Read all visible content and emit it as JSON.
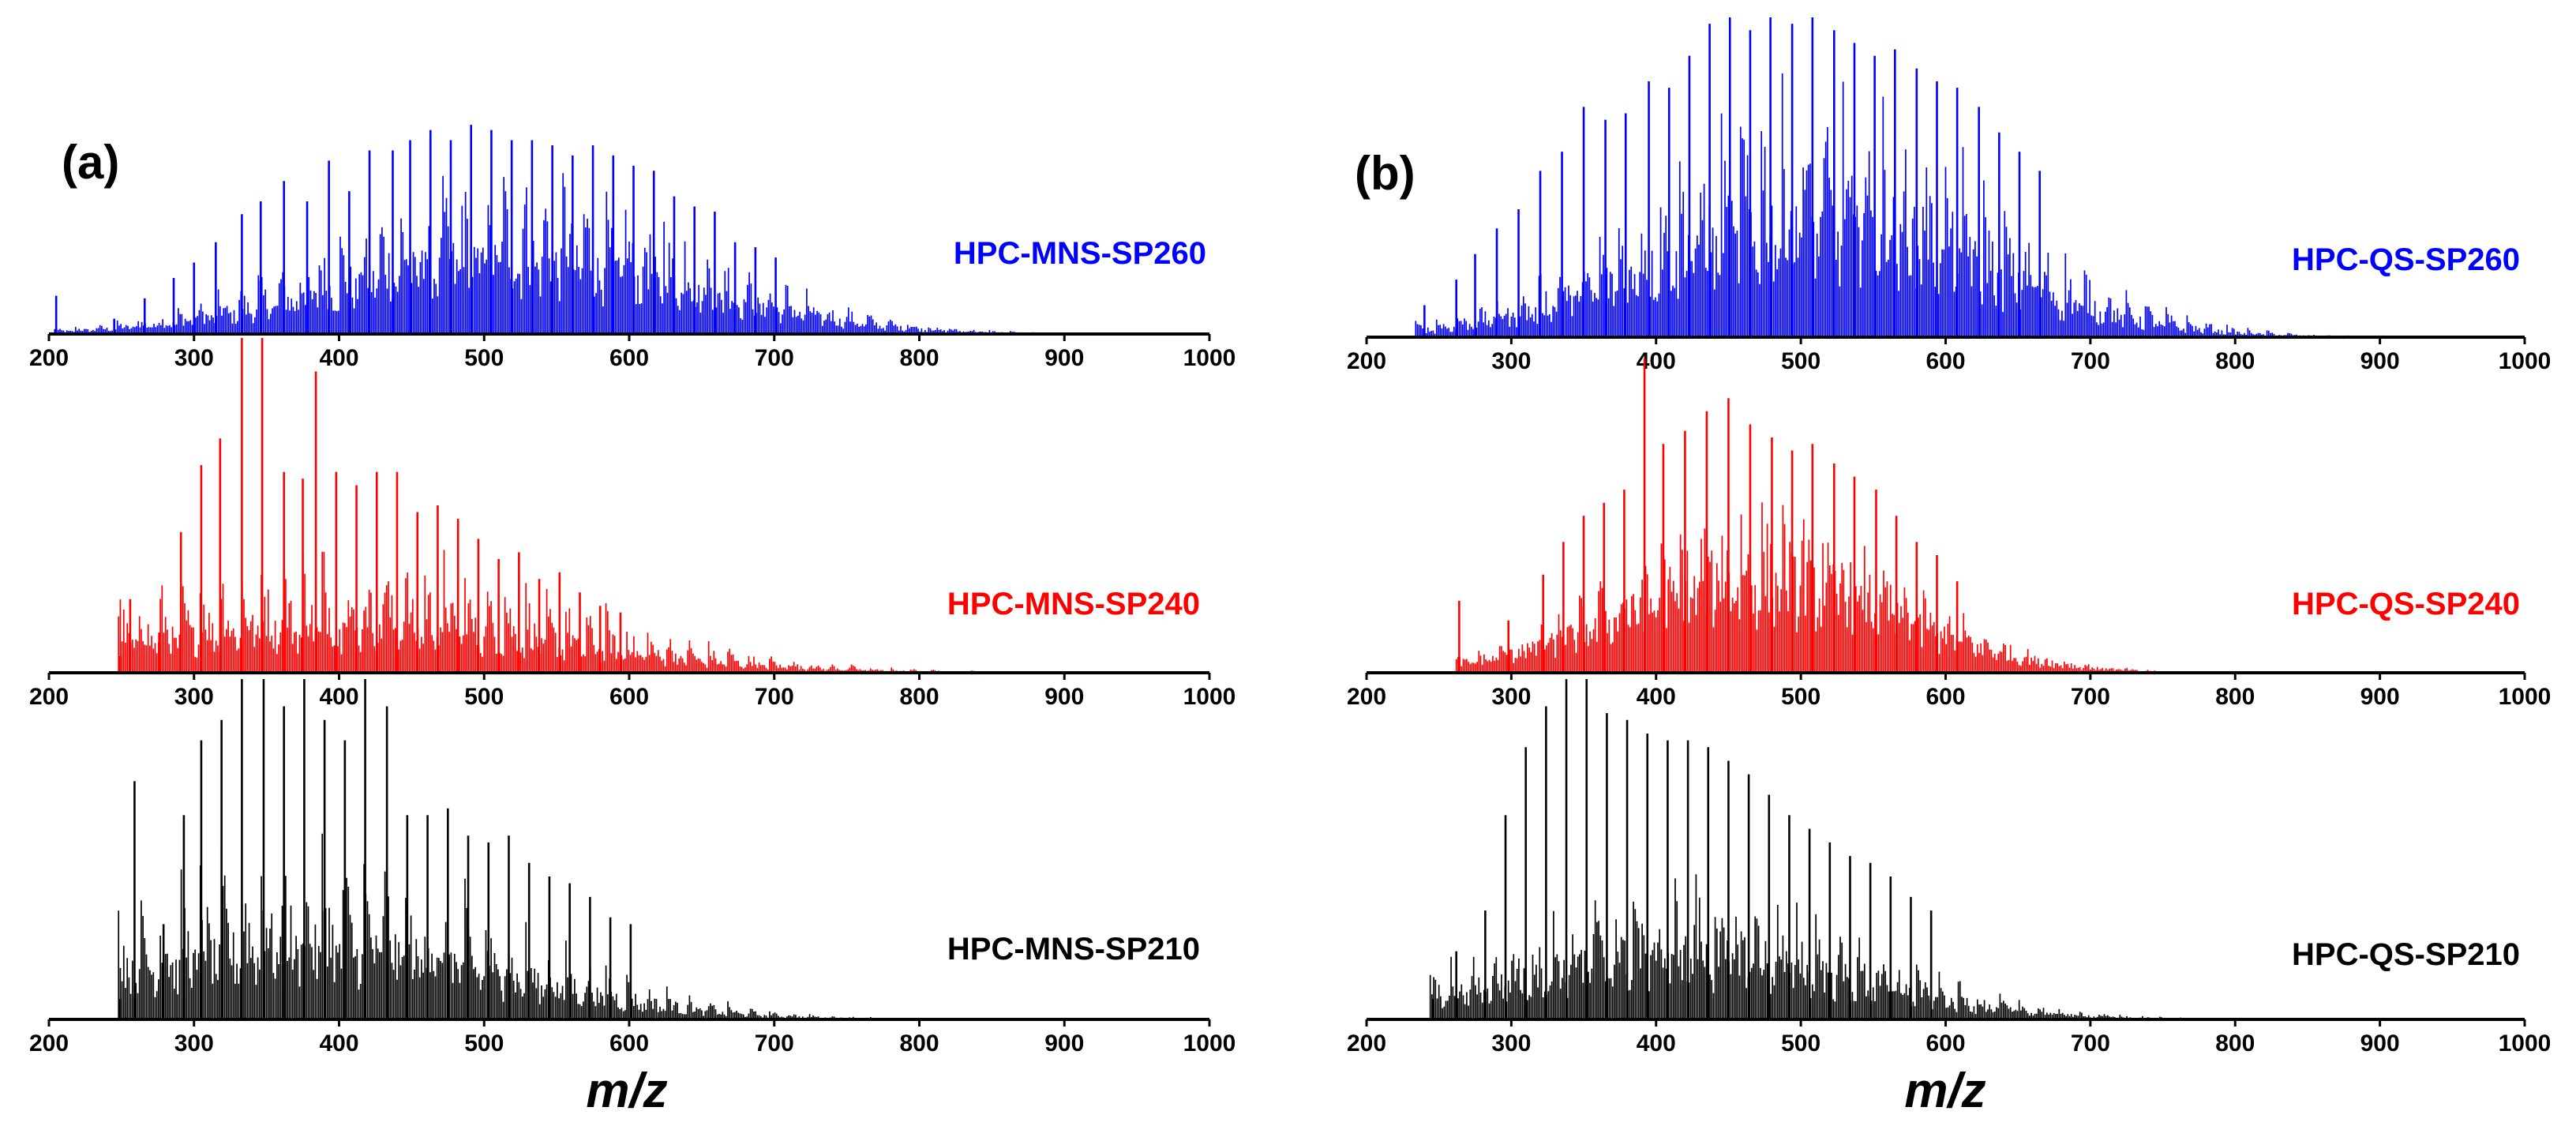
{
  "figure": {
    "colors": {
      "blue": "#0000ff",
      "red": "#ff0000",
      "black": "#000000"
    }
  },
  "chart_data": [
    {
      "type": "bar",
      "panel": "(a)",
      "xlabel": "m/z",
      "ylabel": "",
      "xlim": [
        200,
        1000
      ],
      "ylim": [
        0,
        100
      ],
      "xticks": [
        200,
        300,
        400,
        500,
        600,
        700,
        800,
        900,
        1000
      ],
      "xtick_labels": [
        "200",
        "300",
        "400",
        "500",
        "600",
        "700",
        "800",
        "900",
        "1000"
      ],
      "series": [
        {
          "name": "HPC-MNS-SP260",
          "color": "#0000ff",
          "start": 204,
          "end": 990,
          "spacing": 14.0,
          "center": 520,
          "sigma": 120,
          "envelope_peak": 78,
          "floor_ratio": 0.45,
          "peaks": [
            [
              205,
              15
            ],
            [
              245,
              6
            ],
            [
              266,
              14
            ],
            [
              286,
              22
            ],
            [
              300,
              28
            ],
            [
              315,
              36
            ],
            [
              333,
              47
            ],
            [
              346,
              52
            ],
            [
              362,
              60
            ],
            [
              378,
              52
            ],
            [
              393,
              68
            ],
            [
              407,
              56
            ],
            [
              421,
              72
            ],
            [
              437,
              72
            ],
            [
              449,
              76
            ],
            [
              463,
              80
            ],
            [
              477,
              76
            ],
            [
              491,
              82
            ],
            [
              505,
              80
            ],
            [
              519,
              76
            ],
            [
              533,
              76
            ],
            [
              547,
              74
            ],
            [
              561,
              70
            ],
            [
              575,
              74
            ],
            [
              589,
              70
            ],
            [
              603,
              66
            ],
            [
              617,
              64
            ],
            [
              631,
              54
            ],
            [
              645,
              50
            ],
            [
              659,
              48
            ],
            [
              673,
              36
            ],
            [
              687,
              34
            ],
            [
              701,
              30
            ]
          ]
        },
        {
          "name": "HPC-MNS-SP240",
          "color": "#ff0000",
          "start": 248,
          "end": 960,
          "spacing": 14.0,
          "center": 400,
          "sigma": 150,
          "envelope_peak": 45,
          "floor_ratio": 0.35,
          "peaks": [
            [
              249,
              5
            ],
            [
              256,
              22
            ],
            [
              276,
              12
            ],
            [
              291,
              42
            ],
            [
              305,
              62
            ],
            [
              318,
              70
            ],
            [
              333,
              100
            ],
            [
              347,
              100
            ],
            [
              362,
              60
            ],
            [
              375,
              58
            ],
            [
              384,
              90
            ],
            [
              398,
              60
            ],
            [
              412,
              56
            ],
            [
              426,
              60
            ],
            [
              440,
              60
            ],
            [
              454,
              48
            ],
            [
              468,
              50
            ],
            [
              482,
              46
            ],
            [
              496,
              40
            ],
            [
              510,
              34
            ],
            [
              524,
              36
            ],
            [
              538,
              28
            ],
            [
              552,
              30
            ],
            [
              566,
              24
            ],
            [
              580,
              20
            ],
            [
              594,
              18
            ]
          ]
        },
        {
          "name": "HPC-MNS-SP210",
          "color": "#000000",
          "start": 248,
          "end": 990,
          "spacing": 14.0,
          "center": 380,
          "sigma": 130,
          "envelope_peak": 62,
          "floor_ratio": 0.4,
          "peaks": [
            [
              249,
              6
            ],
            [
              259,
              70
            ],
            [
              279,
              28
            ],
            [
              293,
              60
            ],
            [
              305,
              82
            ],
            [
              319,
              88
            ],
            [
              333,
              100
            ],
            [
              348,
              100
            ],
            [
              362,
              92
            ],
            [
              376,
              100
            ],
            [
              390,
              88
            ],
            [
              404,
              82
            ],
            [
              418,
              100
            ],
            [
              433,
              92
            ],
            [
              447,
              60
            ],
            [
              461,
              60
            ],
            [
              475,
              62
            ],
            [
              489,
              54
            ],
            [
              503,
              52
            ],
            [
              517,
              54
            ],
            [
              531,
              46
            ],
            [
              545,
              42
            ],
            [
              559,
              40
            ],
            [
              573,
              36
            ],
            [
              587,
              30
            ],
            [
              601,
              28
            ]
          ]
        }
      ],
      "trace_labels": [
        "HPC-MNS-SP260",
        "HPC-MNS-SP240",
        "HPC-MNS-SP210"
      ]
    },
    {
      "type": "bar",
      "panel": "(b)",
      "xlabel": "m/z",
      "ylabel": "",
      "xlim": [
        200,
        1000
      ],
      "ylim": [
        0,
        100
      ],
      "xticks": [
        200,
        300,
        400,
        500,
        600,
        700,
        800,
        900,
        1000
      ],
      "xtick_labels": [
        "200",
        "300",
        "400",
        "500",
        "600",
        "700",
        "800",
        "900",
        "1000"
      ],
      "series": [
        {
          "name": "HPC-QS-SP260",
          "color": "#0000ff",
          "start": 234,
          "end": 1000,
          "spacing": 14.0,
          "center": 510,
          "sigma": 115,
          "envelope_peak": 92,
          "floor_ratio": 0.45,
          "peaks": [
            [
              240,
              10
            ],
            [
              262,
              18
            ],
            [
              275,
              26
            ],
            [
              290,
              34
            ],
            [
              305,
              40
            ],
            [
              320,
              52
            ],
            [
              335,
              58
            ],
            [
              350,
              72
            ],
            [
              365,
              68
            ],
            [
              379,
              70
            ],
            [
              395,
              80
            ],
            [
              409,
              78
            ],
            [
              423,
              88
            ],
            [
              437,
              98
            ],
            [
              451,
              100
            ],
            [
              465,
              96
            ],
            [
              479,
              100
            ],
            [
              494,
              98
            ],
            [
              508,
              100
            ],
            [
              523,
              96
            ],
            [
              537,
              92
            ],
            [
              551,
              88
            ],
            [
              565,
              90
            ],
            [
              580,
              84
            ],
            [
              594,
              80
            ],
            [
              608,
              78
            ],
            [
              623,
              72
            ],
            [
              637,
              64
            ],
            [
              651,
              58
            ],
            [
              665,
              52
            ]
          ]
        },
        {
          "name": "HPC-QS-SP240",
          "color": "#ff0000",
          "start": 262,
          "end": 1000,
          "spacing": 14.0,
          "center": 470,
          "sigma": 95,
          "envelope_peak": 60,
          "floor_ratio": 0.6,
          "peaks": [
            [
              264,
              22
            ],
            [
              298,
              16
            ],
            [
              322,
              30
            ],
            [
              336,
              40
            ],
            [
              350,
              48
            ],
            [
              364,
              52
            ],
            [
              378,
              56
            ],
            [
              392,
              96
            ],
            [
              405,
              70
            ],
            [
              420,
              74
            ],
            [
              435,
              80
            ],
            [
              450,
              84
            ],
            [
              465,
              76
            ],
            [
              480,
              72
            ],
            [
              494,
              68
            ],
            [
              508,
              70
            ],
            [
              523,
              64
            ],
            [
              537,
              60
            ],
            [
              552,
              56
            ],
            [
              566,
              48
            ],
            [
              580,
              40
            ],
            [
              594,
              36
            ],
            [
              608,
              28
            ]
          ]
        },
        {
          "name": "HPC-QS-SP210",
          "color": "#000000",
          "start": 244,
          "end": 960,
          "spacing": 14.0,
          "center": 420,
          "sigma": 115,
          "envelope_peak": 52,
          "floor_ratio": 0.4,
          "peaks": [
            [
              246,
              6
            ],
            [
              262,
              20
            ],
            [
              282,
              32
            ],
            [
              296,
              60
            ],
            [
              310,
              80
            ],
            [
              324,
              92
            ],
            [
              338,
              100
            ],
            [
              352,
              100
            ],
            [
              366,
              90
            ],
            [
              380,
              88
            ],
            [
              394,
              84
            ],
            [
              408,
              82
            ],
            [
              422,
              82
            ],
            [
              436,
              80
            ],
            [
              450,
              76
            ],
            [
              464,
              72
            ],
            [
              478,
              66
            ],
            [
              492,
              60
            ],
            [
              506,
              56
            ],
            [
              520,
              52
            ],
            [
              534,
              48
            ],
            [
              548,
              46
            ],
            [
              562,
              42
            ],
            [
              576,
              36
            ],
            [
              590,
              32
            ]
          ]
        }
      ],
      "trace_labels": [
        "HPC-QS-SP260",
        "HPC-QS-SP240",
        "HPC-QS-SP210"
      ]
    }
  ]
}
